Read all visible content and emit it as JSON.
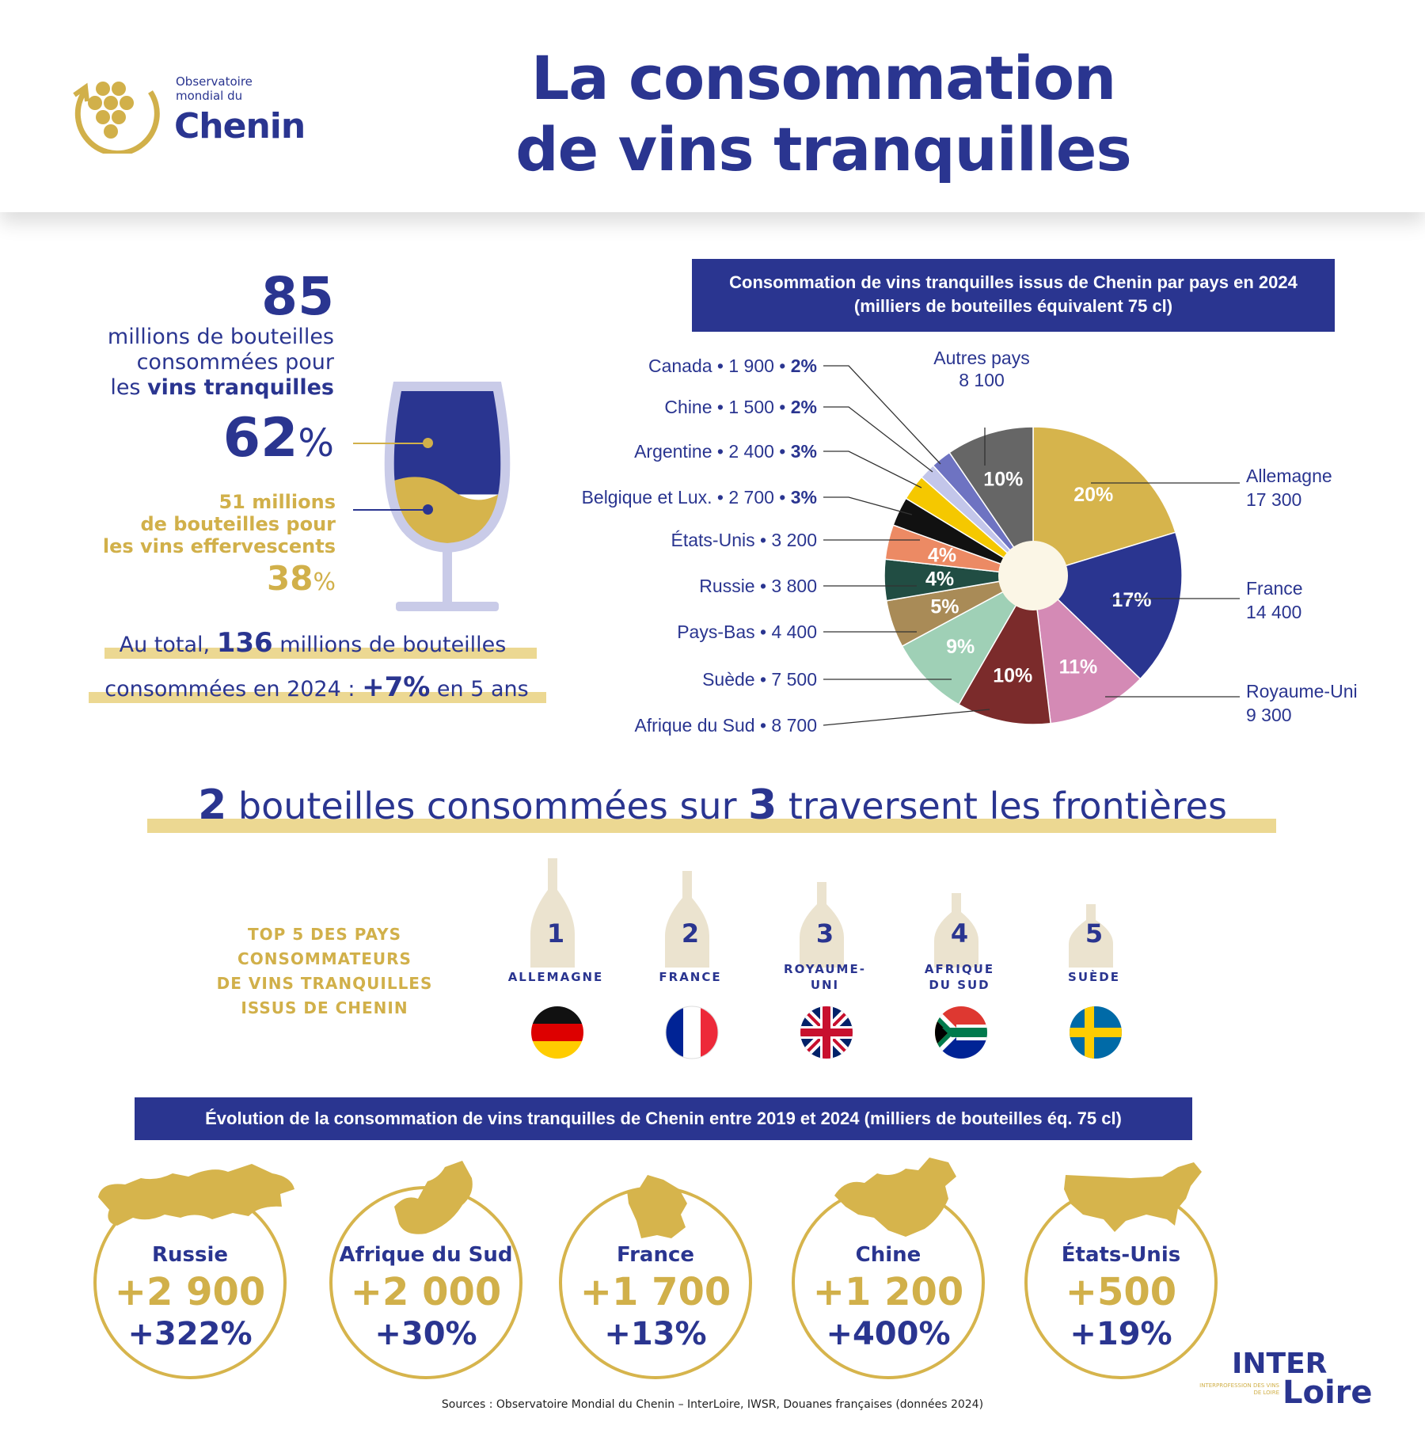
{
  "header": {
    "logo_line1": "Observatoire",
    "logo_line2": "mondial du",
    "logo_name": "Chenin",
    "title_line1": "La consommation",
    "title_line2": "de vins tranquilles"
  },
  "stats": {
    "still_value": "85",
    "still_text_1": "millions de bouteilles",
    "still_text_2": "consommées pour",
    "still_text_3": "les ",
    "still_text_bold": "vins tranquilles",
    "still_pct": "62",
    "pct_sign": "%",
    "sparkling_line1": "51 millions",
    "sparkling_line2": "de bouteilles pour",
    "sparkling_line3": "les vins effervescents",
    "sparkling_pct": "38",
    "total_prefix": "Au total, ",
    "total_value": "136",
    "total_suffix": " millions de bouteilles",
    "total_line2_prefix": "consommées en 2024 : ",
    "total_growth": "+7%",
    "total_line2_suffix": " en 5 ans",
    "still_share": 62,
    "sparkling_share": 38
  },
  "chart_data": {
    "type": "pie",
    "title_line1": "Consommation de vins tranquilles issus de Chenin par pays en 2024",
    "title_line2": "(milliers de bouteilles équivalent 75 cl)",
    "slices": [
      {
        "name": "Allemagne",
        "value": 17300,
        "pct": 20,
        "pct_label": "20%",
        "value_label": "17 300",
        "color": "#d6b44c"
      },
      {
        "name": "France",
        "value": 14400,
        "pct": 17,
        "pct_label": "17%",
        "value_label": "14 400",
        "color": "#2a3590"
      },
      {
        "name": "Royaume-Uni",
        "value": 9300,
        "pct": 11,
        "pct_label": "11%",
        "value_label": "9 300",
        "color": "#d48ab5"
      },
      {
        "name": "Afrique du Sud",
        "value": 8700,
        "pct": 10,
        "pct_label": "10%",
        "value_label": "8 700",
        "color": "#7b2b2b"
      },
      {
        "name": "Suède",
        "value": 7500,
        "pct": 9,
        "pct_label": "9%",
        "value_label": "7 500",
        "color": "#9fd0b6"
      },
      {
        "name": "Pays-Bas",
        "value": 4400,
        "pct": 5,
        "pct_label": "5%",
        "value_label": "4 400",
        "color": "#a98b57"
      },
      {
        "name": "Russie",
        "value": 3800,
        "pct": 4,
        "pct_label": "4%",
        "value_label": "3 800",
        "color": "#214d43"
      },
      {
        "name": "États-Unis",
        "value": 3200,
        "pct": 4,
        "pct_label": "4%",
        "value_label": "3 200",
        "color": "#ec8a64"
      },
      {
        "name": "Belgique et Lux.",
        "value": 2700,
        "pct": 3,
        "pct_label": "3%",
        "value_label": "2 700",
        "color": "#111111"
      },
      {
        "name": "Argentine",
        "value": 2400,
        "pct": 3,
        "pct_label": "3%",
        "value_label": "2 400",
        "color": "#f5c800"
      },
      {
        "name": "Chine",
        "value": 1500,
        "pct": 2,
        "pct_label": "2%",
        "value_label": "1 500",
        "color": "#c3c6ea"
      },
      {
        "name": "Canada",
        "value": 1900,
        "pct": 2,
        "pct_label": "2%",
        "value_label": "1 900",
        "color": "#6e73c2"
      },
      {
        "name": "Autres pays",
        "value": 8100,
        "pct": 10,
        "pct_label": "10%",
        "value_label": "8 100",
        "color": "#666666"
      }
    ]
  },
  "left_labels": [
    {
      "text": "Canada • 1 900 • ",
      "pct": "2%"
    },
    {
      "text": "Chine • 1 500 • ",
      "pct": "2%"
    },
    {
      "text": "Argentine • 2 400 • ",
      "pct": "3%"
    },
    {
      "text": "Belgique et Lux. • 2 700 • ",
      "pct": "3%"
    },
    {
      "text": "États-Unis • 3 200",
      "pct": ""
    },
    {
      "text": "Russie • 3 800",
      "pct": ""
    },
    {
      "text": "Pays-Bas • 4 400",
      "pct": ""
    },
    {
      "text": "Suède • 7 500",
      "pct": ""
    },
    {
      "text": "Afrique du Sud • 8 700",
      "pct": ""
    }
  ],
  "frontier": {
    "n1": "2",
    "text1": " bouteilles consommées sur ",
    "n2": "3",
    "text2": " traversent les frontières"
  },
  "top5": {
    "title_lines": [
      "TOP 5 DES PAYS",
      "CONSOMMATEURS",
      "DE VINS TRANQUILLES",
      "ISSUS DE CHENIN"
    ],
    "items": [
      {
        "rank": "1",
        "country": "ALLEMAGNE",
        "flag": "germany-flag"
      },
      {
        "rank": "2",
        "country": "FRANCE",
        "flag": "france-flag"
      },
      {
        "rank": "3",
        "country": "ROYAUME-UNI",
        "country_l1": "ROYAUME-",
        "country_l2": "UNI",
        "flag": "uk-flag"
      },
      {
        "rank": "4",
        "country": "AFRIQUE DU SUD",
        "country_l1": "AFRIQUE",
        "country_l2": "DU SUD",
        "flag": "south-africa-flag"
      },
      {
        "rank": "5",
        "country": "SUÈDE",
        "flag": "sweden-flag"
      }
    ]
  },
  "evolution": {
    "title": "Évolution de la consommation de vins tranquilles de Chenin entre 2019 et 2024 (milliers de bouteilles éq. 75 cl)",
    "items": [
      {
        "country": "Russie",
        "abs": "+2 900",
        "pct": "+322%",
        "map": "russia-map"
      },
      {
        "country": "Afrique du Sud",
        "abs": "+2 000",
        "pct": "+30%",
        "map": "south-africa-map"
      },
      {
        "country": "France",
        "abs": "+1 700",
        "pct": "+13%",
        "map": "france-map"
      },
      {
        "country": "Chine",
        "abs": "+1 200",
        "pct": "+400%",
        "map": "china-map"
      },
      {
        "country": "États-Unis",
        "abs": "+500",
        "pct": "+19%",
        "map": "usa-map"
      }
    ]
  },
  "footer": {
    "sources": "Sources : Observatoire Mondial du Chenin – InterLoire, IWSR, Douanes françaises (données 2024)",
    "logo_inter": "INTER",
    "logo_loire": "Loire",
    "logo_small": "INTERPROFESSION DES VINS DE LOIRE"
  },
  "colors": {
    "navy": "#2a3590",
    "gold": "#d1b04a"
  }
}
